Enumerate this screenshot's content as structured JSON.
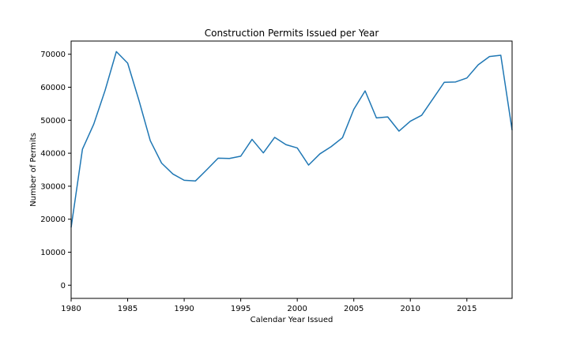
{
  "chart_data": {
    "type": "line",
    "title": "Construction Permits Issued per Year",
    "xlabel": "Calendar Year Issued",
    "ylabel": "Number of Permits",
    "xlim": [
      1980,
      2019
    ],
    "ylim": [
      -4000,
      74000
    ],
    "xticks": [
      1980,
      1985,
      1990,
      1995,
      2000,
      2005,
      2010,
      2015
    ],
    "yticks": [
      0,
      10000,
      20000,
      30000,
      40000,
      50000,
      60000,
      70000
    ],
    "grid": false,
    "line_color": "#1f77b4",
    "series": [
      {
        "x": [
          1980,
          1981,
          1982,
          1983,
          1984,
          1985,
          1986,
          1987,
          1988,
          1989,
          1990,
          1991,
          1992,
          1993,
          1994,
          1995,
          1996,
          1997,
          1998,
          1999,
          2000,
          2001,
          2002,
          2003,
          2004,
          2005,
          2006,
          2007,
          2008,
          2009,
          2010,
          2011,
          2012,
          2013,
          2014,
          2015,
          2016,
          2017,
          2018,
          2019
        ],
        "values": [
          17500,
          41200,
          48800,
          59000,
          70800,
          67300,
          56000,
          43800,
          37000,
          33700,
          31800,
          31600,
          35000,
          38500,
          38400,
          39100,
          44200,
          40100,
          44800,
          42600,
          41600,
          36400,
          39800,
          42000,
          44700,
          53300,
          58900,
          50700,
          51000,
          46700,
          49700,
          51500,
          56500,
          61500,
          61600,
          62800,
          66800,
          69300,
          69700,
          47000
        ]
      }
    ]
  }
}
